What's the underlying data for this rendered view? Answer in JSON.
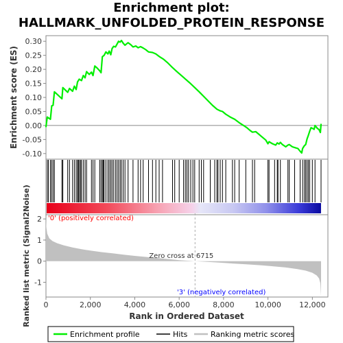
{
  "chart_data": {
    "type": "line",
    "title_line1": "Enrichment plot:",
    "title_line2": "HALLMARK_UNFOLDED_PROTEIN_RESPONSE",
    "ylabel_top": "Enrichment score (ES)",
    "ylabel_bottom": "Ranked list metric (Signal2Noise)",
    "xlabel": "Rank in Ordered Dataset",
    "xlim": [
      0,
      12700
    ],
    "x_ticks": [
      0,
      2000,
      4000,
      6000,
      8000,
      10000,
      12000
    ],
    "x_tick_labels": [
      "0",
      "2,000",
      "4,000",
      "6,000",
      "8,000",
      "10,000",
      "12,000"
    ],
    "es_ylim": [
      -0.12,
      0.32
    ],
    "es_ticks": [
      -0.1,
      -0.05,
      0.0,
      0.05,
      0.1,
      0.15,
      0.2,
      0.25,
      0.3
    ],
    "es_tick_labels": [
      "-0.10",
      "-0.05",
      "0.00",
      "0.05",
      "0.10",
      "0.15",
      "0.20",
      "0.25",
      "0.30"
    ],
    "metric_ylim": [
      -1.7,
      2.2
    ],
    "metric_ticks": [
      -1,
      0,
      1,
      2
    ],
    "metric_tick_labels": [
      "-1",
      "0",
      "1",
      "2"
    ],
    "enrichment_profile": [
      [
        0,
        -0.005
      ],
      [
        60,
        0.03
      ],
      [
        200,
        0.022
      ],
      [
        260,
        0.07
      ],
      [
        320,
        0.072
      ],
      [
        380,
        0.12
      ],
      [
        520,
        0.11
      ],
      [
        720,
        0.095
      ],
      [
        760,
        0.135
      ],
      [
        980,
        0.118
      ],
      [
        1060,
        0.132
      ],
      [
        1200,
        0.122
      ],
      [
        1280,
        0.14
      ],
      [
        1360,
        0.128
      ],
      [
        1420,
        0.155
      ],
      [
        1500,
        0.165
      ],
      [
        1600,
        0.16
      ],
      [
        1680,
        0.178
      ],
      [
        1760,
        0.17
      ],
      [
        1830,
        0.192
      ],
      [
        1950,
        0.182
      ],
      [
        2050,
        0.19
      ],
      [
        2120,
        0.178
      ],
      [
        2200,
        0.212
      ],
      [
        2300,
        0.205
      ],
      [
        2420,
        0.195
      ],
      [
        2480,
        0.188
      ],
      [
        2540,
        0.245
      ],
      [
        2620,
        0.25
      ],
      [
        2700,
        0.262
      ],
      [
        2790,
        0.255
      ],
      [
        2850,
        0.265
      ],
      [
        2920,
        0.252
      ],
      [
        2980,
        0.274
      ],
      [
        3050,
        0.282
      ],
      [
        3130,
        0.28
      ],
      [
        3200,
        0.29
      ],
      [
        3270,
        0.3
      ],
      [
        3340,
        0.297
      ],
      [
        3400,
        0.303
      ],
      [
        3480,
        0.293
      ],
      [
        3560,
        0.286
      ],
      [
        3700,
        0.295
      ],
      [
        3820,
        0.288
      ],
      [
        3920,
        0.28
      ],
      [
        4050,
        0.283
      ],
      [
        4150,
        0.277
      ],
      [
        4260,
        0.281
      ],
      [
        4380,
        0.276
      ],
      [
        4500,
        0.27
      ],
      [
        4620,
        0.262
      ],
      [
        4800,
        0.26
      ],
      [
        4950,
        0.255
      ],
      [
        5100,
        0.246
      ],
      [
        5300,
        0.236
      ],
      [
        5500,
        0.222
      ],
      [
        5700,
        0.206
      ],
      [
        5900,
        0.192
      ],
      [
        6100,
        0.178
      ],
      [
        6300,
        0.164
      ],
      [
        6500,
        0.15
      ],
      [
        6715,
        0.134
      ],
      [
        6900,
        0.12
      ],
      [
        7100,
        0.104
      ],
      [
        7300,
        0.088
      ],
      [
        7500,
        0.072
      ],
      [
        7700,
        0.058
      ],
      [
        7850,
        0.052
      ],
      [
        7950,
        0.05
      ],
      [
        8100,
        0.04
      ],
      [
        8300,
        0.03
      ],
      [
        8500,
        0.022
      ],
      [
        8700,
        0.01
      ],
      [
        8900,
        0.0
      ],
      [
        9050,
        -0.008
      ],
      [
        9200,
        -0.018
      ],
      [
        9300,
        -0.024
      ],
      [
        9450,
        -0.022
      ],
      [
        9600,
        -0.032
      ],
      [
        9750,
        -0.042
      ],
      [
        9900,
        -0.052
      ],
      [
        10000,
        -0.065
      ],
      [
        10050,
        -0.058
      ],
      [
        10200,
        -0.065
      ],
      [
        10350,
        -0.07
      ],
      [
        10420,
        -0.062
      ],
      [
        10500,
        -0.066
      ],
      [
        10560,
        -0.06
      ],
      [
        10650,
        -0.068
      ],
      [
        10800,
        -0.076
      ],
      [
        10900,
        -0.07
      ],
      [
        10960,
        -0.068
      ],
      [
        11100,
        -0.076
      ],
      [
        11250,
        -0.08
      ],
      [
        11350,
        -0.082
      ],
      [
        11450,
        -0.092
      ],
      [
        11520,
        -0.098
      ],
      [
        11560,
        -0.082
      ],
      [
        11640,
        -0.072
      ],
      [
        11700,
        -0.068
      ],
      [
        11760,
        -0.048
      ],
      [
        11820,
        -0.035
      ],
      [
        11880,
        -0.02
      ],
      [
        11940,
        -0.008
      ],
      [
        12000,
        -0.01
      ],
      [
        12080,
        -0.014
      ],
      [
        12120,
        0.0
      ],
      [
        12220,
        -0.01
      ],
      [
        12300,
        -0.015
      ],
      [
        12360,
        -0.025
      ],
      [
        12390,
        0.005
      ]
    ],
    "hits": [
      60,
      110,
      200,
      260,
      320,
      380,
      720,
      760,
      980,
      1060,
      1200,
      1280,
      1360,
      1420,
      1460,
      1500,
      1560,
      1600,
      1680,
      1760,
      1830,
      2050,
      2120,
      2200,
      2420,
      2480,
      2540,
      2580,
      2620,
      2700,
      2790,
      2850,
      2920,
      2980,
      3050,
      3130,
      3200,
      3270,
      3340,
      3400,
      3480,
      3560,
      3700,
      3920,
      4150,
      4260,
      4380,
      4620,
      4800,
      4950,
      5100,
      5250,
      5700,
      5800,
      6000,
      6200,
      6280,
      6350,
      6420,
      6520,
      6620,
      6700,
      6900,
      7000,
      7100,
      7400,
      7600,
      7700,
      7750,
      7850,
      7950,
      8100,
      8400,
      8500,
      8700,
      9000,
      9300,
      9400,
      10000,
      10050,
      10300,
      10420,
      10450,
      10560,
      10900,
      10960,
      11200,
      11450,
      11560,
      11640,
      11700,
      11760,
      11820,
      11880,
      12000,
      12120,
      12390
    ],
    "ranked_metric": [
      [
        0,
        2.05
      ],
      [
        20,
        1.6
      ],
      [
        60,
        1.3
      ],
      [
        150,
        1.08
      ],
      [
        300,
        0.95
      ],
      [
        500,
        0.85
      ],
      [
        800,
        0.75
      ],
      [
        1200,
        0.65
      ],
      [
        1600,
        0.57
      ],
      [
        2000,
        0.5
      ],
      [
        2500,
        0.43
      ],
      [
        3000,
        0.37
      ],
      [
        3500,
        0.31
      ],
      [
        4000,
        0.25
      ],
      [
        4500,
        0.2
      ],
      [
        5000,
        0.15
      ],
      [
        5500,
        0.1
      ],
      [
        6000,
        0.05
      ],
      [
        6715,
        0.0
      ],
      [
        7200,
        -0.03
      ],
      [
        7800,
        -0.07
      ],
      [
        8400,
        -0.11
      ],
      [
        9000,
        -0.15
      ],
      [
        9600,
        -0.19
      ],
      [
        10200,
        -0.24
      ],
      [
        10800,
        -0.3
      ],
      [
        11300,
        -0.37
      ],
      [
        11700,
        -0.45
      ],
      [
        12000,
        -0.55
      ],
      [
        12200,
        -0.68
      ],
      [
        12300,
        -0.82
      ],
      [
        12360,
        -1.05
      ],
      [
        12390,
        -1.65
      ]
    ],
    "zero_cross_x": 6715,
    "zero_cross_label": "Zero cross at 6715",
    "pos_label": "'0' (positively correlated)",
    "neg_label": "'3' (negatively correlated)",
    "legend": [
      "Enrichment profile",
      "Hits",
      "Ranking metric scores"
    ],
    "colors": {
      "profile": "#00ee00",
      "hits": "#000000",
      "metric_fill": "#c0c0c0",
      "pos_label": "#ff0000",
      "neg_label": "#0000ff",
      "zero_cross": "#333333",
      "axis": "#888888"
    }
  }
}
